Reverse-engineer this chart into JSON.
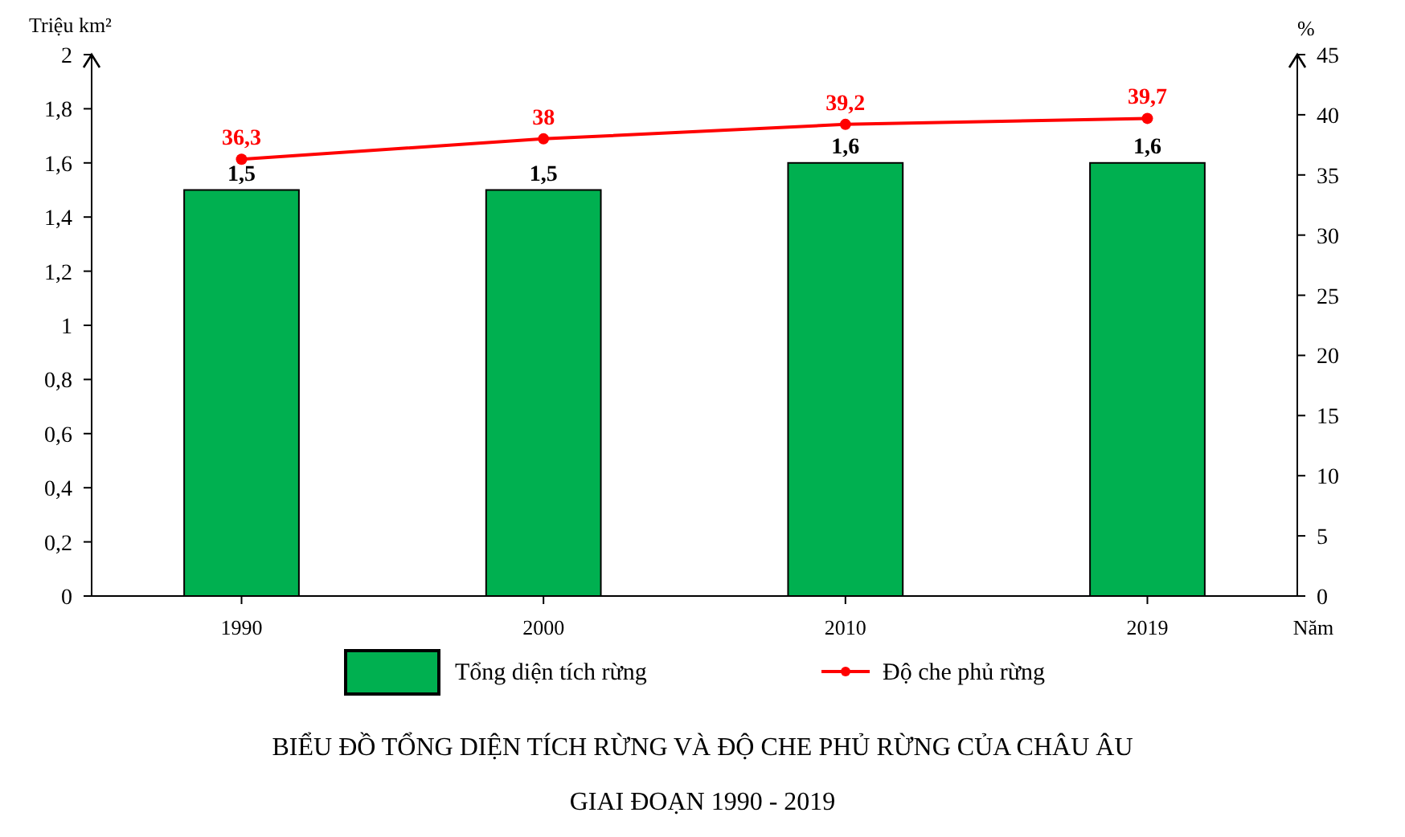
{
  "chart_data": {
    "type": "bar",
    "title": "BIỂU ĐỒ TỔNG DIỆN TÍCH RỪNG VÀ ĐỘ CHE PHỦ RỪNG CỦA CHÂU ÂU",
    "subtitle": "GIAI ĐOẠN 1990 - 2019",
    "xlabel": "Năm",
    "ylabel": "Triệu km²",
    "y2label": "%",
    "categories": [
      "1990",
      "2000",
      "2010",
      "2019"
    ],
    "series": [
      {
        "name": "Tổng diện tích rừng",
        "color": "#00b050",
        "values": [
          1.5,
          1.5,
          1.6,
          1.6
        ],
        "value_labels": [
          "1,5",
          "1,5",
          "1,6",
          "1,6"
        ]
      },
      {
        "name": "Độ che phủ rừng",
        "type": "line",
        "axis": "y2",
        "color": "#ff0000",
        "values": [
          36.3,
          38,
          39.2,
          39.7
        ],
        "value_labels": [
          "36,3",
          "38",
          "39,2",
          "39,7"
        ],
        "marker": "circle",
        "line_style": "solid"
      }
    ],
    "ylim": [
      0,
      2
    ],
    "yticks": [
      0,
      {
        "value": 0.2,
        "label": "0,2"
      },
      {
        "value": 0.4,
        "label": "0,4"
      },
      {
        "value": 0.6,
        "label": "0,6"
      },
      {
        "value": 0.8,
        "label": "0,8"
      },
      1,
      {
        "value": 1.2,
        "label": "1,2"
      },
      {
        "value": 1.4,
        "label": "1,4"
      },
      {
        "value": 1.6,
        "label": "1,6"
      },
      {
        "value": 1.8,
        "label": "1,8"
      },
      2
    ],
    "y2lim": [
      0,
      45
    ],
    "y2ticks": [
      0,
      5,
      10,
      15,
      20,
      25,
      30,
      35,
      40,
      45
    ],
    "grid": false,
    "legend": "bottom"
  }
}
